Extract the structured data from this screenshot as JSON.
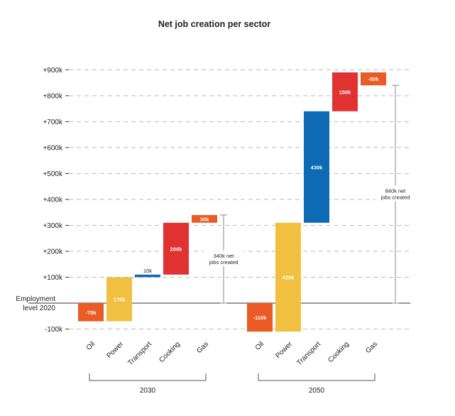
{
  "chart_data": {
    "type": "waterfall",
    "title": "Net job creation per sector",
    "ylabel": "",
    "xlabel": "",
    "ylim": [
      -100,
      900
    ],
    "y_unit": "thousand jobs",
    "yticks": [
      {
        "value": 900,
        "label": "+900k"
      },
      {
        "value": 800,
        "label": "+800k"
      },
      {
        "value": 700,
        "label": "+700k"
      },
      {
        "value": 600,
        "label": "+600k"
      },
      {
        "value": 500,
        "label": "+500k"
      },
      {
        "value": 400,
        "label": "+400k"
      },
      {
        "value": 300,
        "label": "+300k"
      },
      {
        "value": 200,
        "label": "+200k"
      },
      {
        "value": 100,
        "label": "+100k"
      },
      {
        "value": -100,
        "label": "-100k"
      }
    ],
    "baseline_label": [
      "Employment",
      "level 2020"
    ],
    "grid": "horizontal-dashed",
    "colors": {
      "Oil": "#ea5b25",
      "Power": "#f2c040",
      "Transport": "#0e6ab4",
      "Cooking": "#e13232",
      "Gas": "#ea5b25",
      "grid": "#bbbbbb",
      "axis": "#333333"
    },
    "groups": [
      {
        "name": "2030",
        "categories": [
          "Oil",
          "Power",
          "Transport",
          "Cooking",
          "Gas"
        ],
        "values": [
          -70,
          170,
          10,
          200,
          30
        ],
        "labels": [
          "-70k",
          "170k",
          "10k",
          "200k",
          "30k"
        ],
        "total": 340,
        "total_label": [
          "340k net",
          "jobs created"
        ]
      },
      {
        "name": "2050",
        "categories": [
          "Oil",
          "Power",
          "Transport",
          "Cooking",
          "Gas"
        ],
        "values": [
          -110,
          420,
          430,
          150,
          -50
        ],
        "labels": [
          "-110k",
          "420k",
          "430k",
          "150k",
          "-50k"
        ],
        "total": 840,
        "total_label": [
          "840k net",
          "jobs created"
        ]
      }
    ]
  }
}
